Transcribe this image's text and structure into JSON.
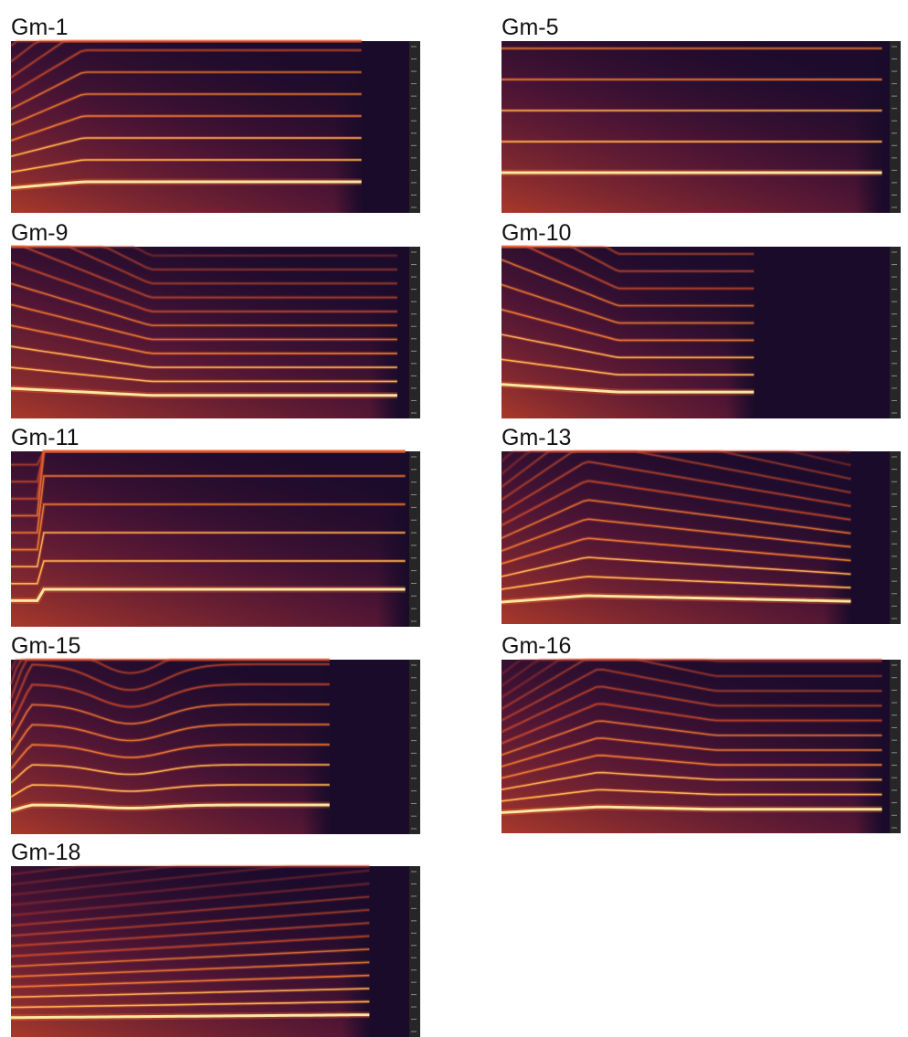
{
  "panels": [
    {
      "label": "Gm-1"
    },
    {
      "label": "Gm-5"
    },
    {
      "label": "Gm-9"
    },
    {
      "label": "Gm-10"
    },
    {
      "label": "Gm-11"
    },
    {
      "label": "Gm-13"
    },
    {
      "label": "Gm-15"
    },
    {
      "label": "Gm-16"
    },
    {
      "label": "Gm-18"
    }
  ]
}
